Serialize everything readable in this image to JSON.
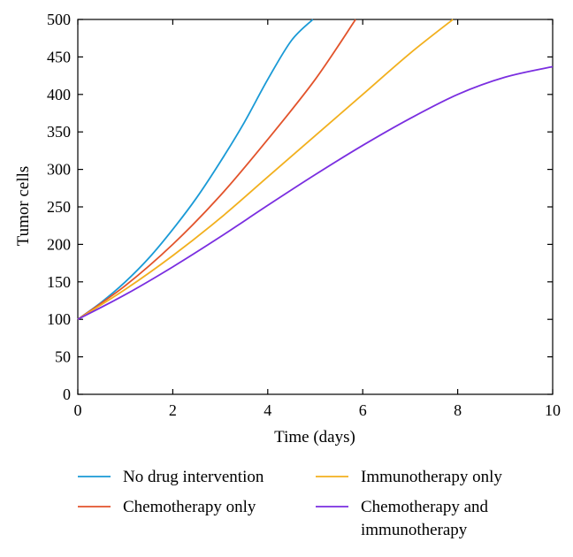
{
  "chart_data": {
    "type": "line",
    "xlabel": "Time (days)",
    "ylabel": "Tumor cells",
    "xlim": [
      0,
      10
    ],
    "ylim": [
      0,
      500
    ],
    "xticks": [
      "0",
      "2",
      "4",
      "6",
      "8",
      "10"
    ],
    "yticks": [
      "0",
      "50",
      "100",
      "150",
      "200",
      "250",
      "300",
      "350",
      "400",
      "450",
      "500"
    ],
    "grid": false,
    "legend_position": "bottom",
    "series": [
      {
        "name": "No drug intervention",
        "color": "#1a9ad6",
        "x": [
          0,
          0.5,
          1,
          1.5,
          2,
          2.5,
          3,
          3.5,
          4,
          4.5,
          4.95
        ],
        "y": [
          100,
          123,
          150,
          182,
          220,
          262,
          310,
          362,
          420,
          472,
          500
        ]
      },
      {
        "name": "Chemotherapy only",
        "color": "#e2532b",
        "x": [
          0,
          1,
          2,
          3,
          4,
          5,
          5.85
        ],
        "y": [
          100,
          145,
          200,
          265,
          340,
          420,
          500
        ]
      },
      {
        "name": "Immunotherapy only",
        "color": "#f2b01e",
        "x": [
          0,
          1,
          2,
          3,
          4,
          5,
          6,
          7,
          7.9
        ],
        "y": [
          100,
          140,
          185,
          235,
          290,
          345,
          400,
          455,
          500
        ]
      },
      {
        "name": "Chemotherapy and immunotherapy",
        "label_lines": [
          "Chemotherapy and",
          "immunotherapy"
        ],
        "color": "#7a2ee0",
        "x": [
          0,
          1,
          2,
          3,
          4,
          5,
          6,
          7,
          8,
          9,
          10
        ],
        "y": [
          100,
          133,
          170,
          210,
          252,
          293,
          332,
          368,
          400,
          423,
          437
        ]
      }
    ]
  }
}
